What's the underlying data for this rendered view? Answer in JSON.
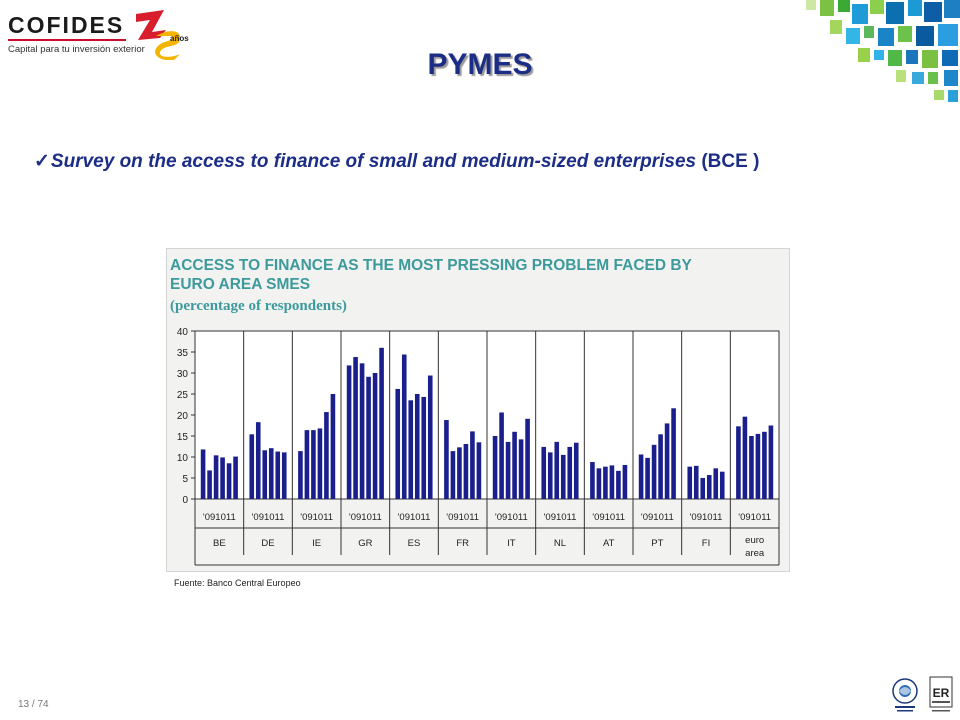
{
  "logo": {
    "brand": "COFIDES",
    "tagline": "Capital para tu inversión exterior",
    "anniversary_number": "25",
    "anniversary_label": "años"
  },
  "page": {
    "title": "PYMES",
    "subtitle_check": "✓",
    "subtitle_italic": "Survey on the access to finance of small and medium-sized enterprises",
    "subtitle_plain": " (BCE )",
    "source": "Fuente: Banco Central Europeo",
    "page_number": "13 / 74"
  },
  "colors": {
    "title": "#1c2d86",
    "bars": "#1a1f8c",
    "chart_title": "#3d9a9c",
    "chart_bg": "#f2f3f1"
  },
  "chart_data": {
    "type": "bar",
    "title": "ACCESS TO FINANCE  AS THE MOST PRESSING PROBLEM FACED BY EURO AREA SMES",
    "subtitle": "(percentage of respondents)",
    "ylim": [
      0,
      40
    ],
    "yticks": [
      "0",
      "5",
      "10",
      "15",
      "20",
      "25",
      "30",
      "35",
      "40"
    ],
    "period_label": "'091011",
    "grid": false,
    "groups": [
      {
        "label": "BE",
        "values": [
          11.8,
          6.8,
          10.4,
          9.9,
          8.5,
          10.1
        ]
      },
      {
        "label": "DE",
        "values": [
          15.4,
          18.3,
          11.6,
          12.1,
          11.3,
          11.1
        ]
      },
      {
        "label": "IE",
        "values": [
          11.4,
          16.4,
          16.4,
          16.8,
          20.7,
          25.0
        ]
      },
      {
        "label": "GR",
        "values": [
          31.8,
          33.8,
          32.3,
          29.1,
          30.0,
          36.0
        ]
      },
      {
        "label": "ES",
        "values": [
          26.2,
          34.4,
          23.5,
          25.0,
          24.3,
          29.4
        ]
      },
      {
        "label": "FR",
        "values": [
          18.8,
          11.4,
          12.3,
          13.1,
          16.1,
          13.5
        ]
      },
      {
        "label": "IT",
        "values": [
          15.0,
          20.6,
          13.6,
          16.0,
          14.2,
          19.1
        ]
      },
      {
        "label": "NL",
        "values": [
          12.4,
          11.1,
          13.6,
          10.5,
          12.4,
          13.4
        ]
      },
      {
        "label": "AT",
        "values": [
          8.8,
          7.3,
          7.7,
          8.0,
          6.7,
          8.1
        ]
      },
      {
        "label": "PT",
        "values": [
          10.6,
          9.8,
          12.9,
          15.4,
          18.0,
          21.6
        ]
      },
      {
        "label": "FI",
        "values": [
          7.7,
          7.9,
          5.0,
          5.7,
          7.3,
          6.5
        ]
      },
      {
        "label": "euro area",
        "label_lines": [
          "euro",
          "area"
        ],
        "values": [
          17.3,
          19.6,
          15.0,
          15.5,
          16.0,
          17.5
        ]
      }
    ]
  }
}
